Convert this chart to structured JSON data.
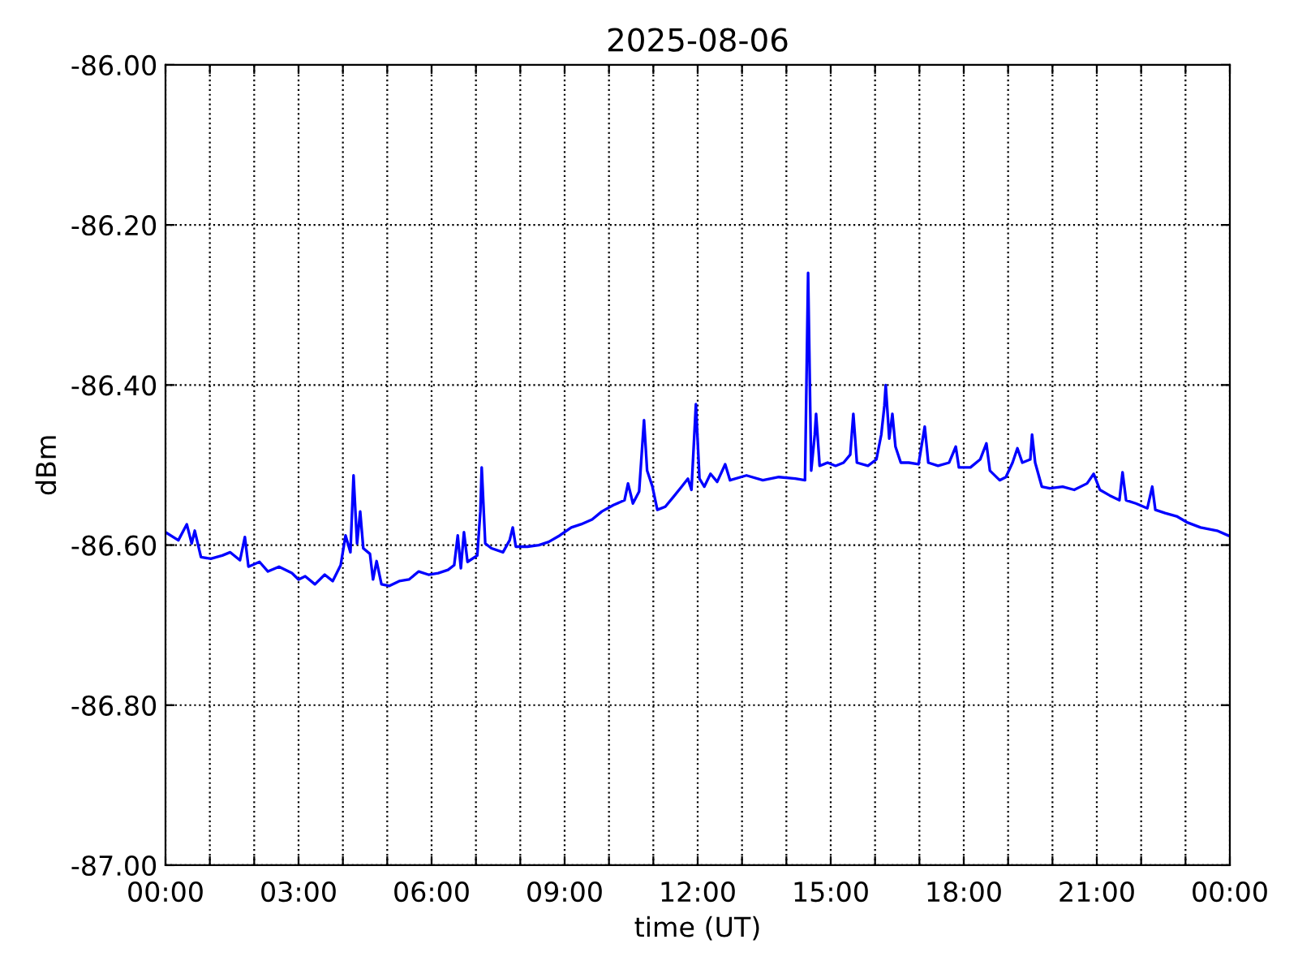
{
  "chart_data": {
    "type": "line",
    "title": "2025-08-06",
    "xlabel": "time (UT)",
    "ylabel": "dBm",
    "xlim": [
      0,
      24
    ],
    "ylim": [
      -87,
      -86
    ],
    "xticks": [
      {
        "value": 0,
        "label": "00:00"
      },
      {
        "value": 1,
        "label": null
      },
      {
        "value": 2,
        "label": null
      },
      {
        "value": 3,
        "label": "03:00"
      },
      {
        "value": 4,
        "label": null
      },
      {
        "value": 5,
        "label": null
      },
      {
        "value": 6,
        "label": "06:00"
      },
      {
        "value": 7,
        "label": null
      },
      {
        "value": 8,
        "label": null
      },
      {
        "value": 9,
        "label": "09:00"
      },
      {
        "value": 10,
        "label": null
      },
      {
        "value": 11,
        "label": null
      },
      {
        "value": 12,
        "label": "12:00"
      },
      {
        "value": 13,
        "label": null
      },
      {
        "value": 14,
        "label": null
      },
      {
        "value": 15,
        "label": "15:00"
      },
      {
        "value": 16,
        "label": null
      },
      {
        "value": 17,
        "label": null
      },
      {
        "value": 18,
        "label": "18:00"
      },
      {
        "value": 19,
        "label": null
      },
      {
        "value": 20,
        "label": null
      },
      {
        "value": 21,
        "label": "21:00"
      },
      {
        "value": 22,
        "label": null
      },
      {
        "value": 23,
        "label": null
      },
      {
        "value": 24,
        "label": "00:00"
      }
    ],
    "yticks": [
      {
        "value": -87,
        "label": "-87.00"
      },
      {
        "value": -86.8,
        "label": "-86.80"
      },
      {
        "value": -86.6,
        "label": "-86.60"
      },
      {
        "value": -86.4,
        "label": "-86.40"
      },
      {
        "value": -86.2,
        "label": "-86.20"
      },
      {
        "value": -86,
        "label": "-86.00"
      }
    ],
    "grid": true,
    "marker": "none",
    "line_style": "solid",
    "series": [
      {
        "color": "#0000ff",
        "x": [
          0.0,
          0.29,
          0.48,
          0.59,
          0.66,
          0.8,
          1.02,
          1.28,
          1.46,
          1.68,
          1.79,
          1.87,
          2.12,
          2.31,
          2.56,
          2.85,
          3.0,
          3.15,
          3.37,
          3.59,
          3.77,
          3.95,
          4.06,
          4.17,
          4.24,
          4.32,
          4.39,
          4.46,
          4.61,
          4.68,
          4.76,
          4.87,
          5.05,
          5.27,
          5.49,
          5.71,
          5.93,
          6.15,
          6.37,
          6.51,
          6.59,
          6.66,
          6.73,
          6.81,
          7.03,
          7.1,
          7.13,
          7.21,
          7.35,
          7.61,
          7.76,
          7.83,
          7.9,
          8.16,
          8.42,
          8.64,
          8.89,
          9.15,
          9.37,
          9.62,
          9.84,
          10.1,
          10.35,
          10.43,
          10.54,
          10.68,
          10.79,
          10.86,
          10.98,
          11.09,
          11.27,
          11.45,
          11.64,
          11.78,
          11.86,
          11.96,
          12.04,
          12.15,
          12.29,
          12.44,
          12.62,
          12.73,
          13.1,
          13.47,
          13.83,
          14.2,
          14.42,
          14.49,
          14.56,
          14.64,
          14.67,
          14.75,
          14.93,
          15.11,
          15.29,
          15.44,
          15.51,
          15.59,
          15.84,
          16.03,
          16.14,
          16.21,
          16.24,
          16.32,
          16.39,
          16.46,
          16.58,
          16.76,
          16.98,
          17.12,
          17.2,
          17.42,
          17.67,
          17.82,
          17.89,
          18.15,
          18.37,
          18.51,
          18.59,
          18.81,
          18.95,
          19.1,
          19.21,
          19.32,
          19.5,
          19.54,
          19.61,
          19.76,
          19.94,
          20.23,
          20.49,
          20.78,
          20.93,
          21.07,
          21.29,
          21.51,
          21.58,
          21.66,
          21.88,
          22.14,
          22.25,
          22.32,
          22.54,
          22.8,
          23.05,
          23.34,
          23.71,
          23.96
        ],
        "values": [
          -86.584,
          -86.594,
          -86.574,
          -86.598,
          -86.582,
          -86.615,
          -86.617,
          -86.613,
          -86.609,
          -86.619,
          -86.59,
          -86.627,
          -86.621,
          -86.633,
          -86.627,
          -86.635,
          -86.643,
          -86.639,
          -86.649,
          -86.637,
          -86.645,
          -86.625,
          -86.588,
          -86.609,
          -86.513,
          -86.598,
          -86.558,
          -86.604,
          -86.611,
          -86.643,
          -86.62,
          -86.649,
          -86.651,
          -86.645,
          -86.643,
          -86.633,
          -86.637,
          -86.635,
          -86.631,
          -86.625,
          -86.588,
          -86.629,
          -86.584,
          -86.621,
          -86.613,
          -86.558,
          -86.503,
          -86.598,
          -86.604,
          -86.609,
          -86.594,
          -86.578,
          -86.602,
          -86.602,
          -86.6,
          -86.596,
          -86.588,
          -86.578,
          -86.574,
          -86.568,
          -86.558,
          -86.55,
          -86.544,
          -86.523,
          -86.548,
          -86.533,
          -86.444,
          -86.507,
          -86.527,
          -86.556,
          -86.552,
          -86.54,
          -86.527,
          -86.517,
          -86.531,
          -86.424,
          -86.517,
          -86.527,
          -86.511,
          -86.521,
          -86.499,
          -86.519,
          -86.513,
          -86.519,
          -86.515,
          -86.517,
          -86.519,
          -86.26,
          -86.507,
          -86.462,
          -86.436,
          -86.501,
          -86.497,
          -86.501,
          -86.497,
          -86.487,
          -86.436,
          -86.497,
          -86.501,
          -86.493,
          -86.462,
          -86.426,
          -86.4,
          -86.467,
          -86.436,
          -86.477,
          -86.497,
          -86.497,
          -86.499,
          -86.452,
          -86.497,
          -86.501,
          -86.497,
          -86.477,
          -86.503,
          -86.503,
          -86.493,
          -86.473,
          -86.507,
          -86.519,
          -86.515,
          -86.497,
          -86.479,
          -86.497,
          -86.493,
          -86.462,
          -86.497,
          -86.527,
          -86.529,
          -86.527,
          -86.531,
          -86.523,
          -86.511,
          -86.531,
          -86.538,
          -86.544,
          -86.509,
          -86.544,
          -86.548,
          -86.554,
          -86.527,
          -86.556,
          -86.56,
          -86.564,
          -86.572,
          -86.578,
          -86.582,
          -86.588
        ]
      }
    ]
  }
}
